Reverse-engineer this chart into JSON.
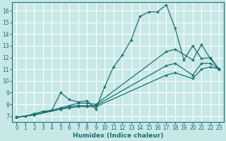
{
  "xlabel": "Humidex (Indice chaleur)",
  "bg_color": "#c8e8e8",
  "line_color": "#1a7070",
  "grid_color": "#ffffff",
  "xlim": [
    -0.5,
    23.5
  ],
  "ylim": [
    6.5,
    16.7
  ],
  "xticks": [
    0,
    1,
    2,
    3,
    4,
    5,
    6,
    7,
    8,
    9,
    10,
    11,
    12,
    13,
    14,
    15,
    16,
    17,
    18,
    19,
    20,
    21,
    22,
    23
  ],
  "yticks": [
    7,
    8,
    9,
    10,
    11,
    12,
    13,
    14,
    15,
    16
  ],
  "line1_x": [
    0,
    1,
    2,
    3,
    4,
    5,
    6,
    7,
    8,
    9,
    10,
    11,
    12,
    13,
    14,
    15,
    16,
    17,
    18,
    19,
    20,
    21,
    22,
    23
  ],
  "line1_y": [
    6.9,
    7.0,
    7.2,
    7.4,
    7.5,
    9.0,
    8.4,
    8.2,
    8.3,
    7.6,
    9.5,
    11.2,
    12.2,
    13.5,
    15.5,
    15.9,
    15.9,
    16.5,
    14.5,
    11.8,
    13.0,
    11.9,
    12.0,
    11.0
  ],
  "line2_x": [
    0,
    2,
    5,
    6,
    7,
    8,
    9,
    17,
    18,
    20,
    21,
    22,
    23
  ],
  "line2_y": [
    6.9,
    7.1,
    7.7,
    7.9,
    8.1,
    8.1,
    8.0,
    12.5,
    12.7,
    11.8,
    13.1,
    11.9,
    11.0
  ],
  "line3_x": [
    0,
    2,
    5,
    6,
    7,
    8,
    9,
    17,
    18,
    20,
    21,
    22,
    23
  ],
  "line3_y": [
    6.9,
    7.1,
    7.6,
    7.8,
    7.9,
    7.9,
    7.9,
    11.3,
    11.5,
    10.5,
    11.5,
    11.5,
    11.0
  ],
  "line4_x": [
    0,
    2,
    5,
    6,
    7,
    8,
    9,
    17,
    18,
    20,
    21,
    22,
    23
  ],
  "line4_y": [
    6.9,
    7.1,
    7.6,
    7.7,
    7.8,
    7.8,
    7.8,
    10.5,
    10.7,
    10.2,
    11.0,
    11.2,
    11.0
  ]
}
